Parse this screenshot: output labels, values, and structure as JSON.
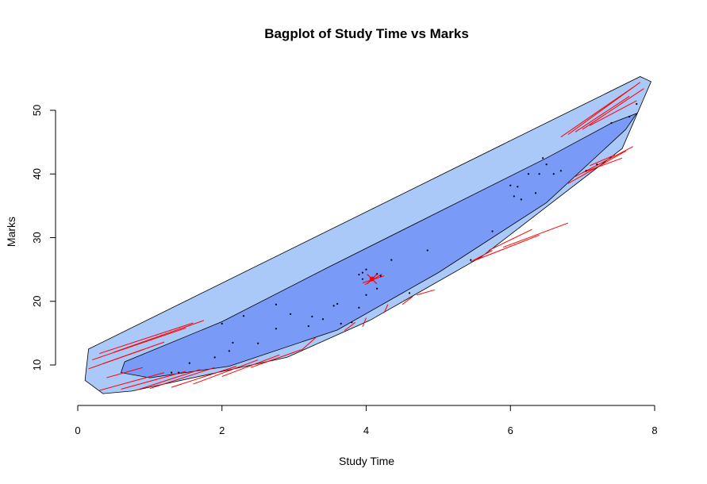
{
  "chart_data": {
    "type": "scatter",
    "subtype": "bagplot",
    "title": "Bagplot of Study Time vs Marks",
    "xlabel": "Study Time",
    "ylabel": "Marks",
    "xlim": [
      0,
      8
    ],
    "ylim": [
      5,
      55
    ],
    "x_ticks": [
      0,
      2,
      4,
      6,
      8
    ],
    "y_ticks": [
      10,
      20,
      30,
      40,
      50
    ],
    "grid": false,
    "colors": {
      "loop": "#aac8f8",
      "bag": "#7a9af8",
      "outline": "#000000",
      "whisker": "#ff0000",
      "center": "#ff0000",
      "points": "#000000"
    },
    "loop_polygon": [
      [
        0.15,
        12.5
      ],
      [
        7.8,
        55.3
      ],
      [
        7.95,
        54.5
      ],
      [
        7.55,
        44.0
      ],
      [
        5.6,
        27.0
      ],
      [
        4.05,
        17.0
      ],
      [
        2.9,
        11.2
      ],
      [
        0.75,
        5.9
      ],
      [
        0.35,
        5.5
      ],
      [
        0.1,
        7.6
      ]
    ],
    "bag_polygon": [
      [
        0.65,
        10.5
      ],
      [
        2.0,
        16.8
      ],
      [
        3.5,
        25.5
      ],
      [
        5.0,
        34.0
      ],
      [
        6.5,
        42.5
      ],
      [
        7.4,
        48.0
      ],
      [
        7.75,
        49.5
      ],
      [
        7.6,
        47.0
      ],
      [
        6.5,
        35.5
      ],
      [
        5.0,
        24.5
      ],
      [
        3.6,
        15.5
      ],
      [
        2.1,
        9.8
      ],
      [
        1.0,
        8.0
      ],
      [
        0.6,
        8.8
      ]
    ],
    "center": [
      4.08,
      23.5
    ],
    "points": [
      [
        1.3,
        8.8
      ],
      [
        1.4,
        8.8
      ],
      [
        1.55,
        10.3
      ],
      [
        1.9,
        11.2
      ],
      [
        2.0,
        16.5
      ],
      [
        2.1,
        12.2
      ],
      [
        2.15,
        13.5
      ],
      [
        2.3,
        17.7
      ],
      [
        2.5,
        13.4
      ],
      [
        2.75,
        19.5
      ],
      [
        2.75,
        15.7
      ],
      [
        2.95,
        18.0
      ],
      [
        3.2,
        16.1
      ],
      [
        3.25,
        17.6
      ],
      [
        3.4,
        17.2
      ],
      [
        3.55,
        19.3
      ],
      [
        3.6,
        19.6
      ],
      [
        3.65,
        16.5
      ],
      [
        3.8,
        16.7
      ],
      [
        3.9,
        19.0
      ],
      [
        3.9,
        24.2
      ],
      [
        3.95,
        23.5
      ],
      [
        3.95,
        24.5
      ],
      [
        4.0,
        21.0
      ],
      [
        4.0,
        25.0
      ],
      [
        4.1,
        23.7
      ],
      [
        4.15,
        24.3
      ],
      [
        4.2,
        24.0
      ],
      [
        4.15,
        22.0
      ],
      [
        4.35,
        26.5
      ],
      [
        4.6,
        21.3
      ],
      [
        4.85,
        28.0
      ],
      [
        5.45,
        26.5
      ],
      [
        5.75,
        31.0
      ],
      [
        6.0,
        38.2
      ],
      [
        6.05,
        36.5
      ],
      [
        6.1,
        38.0
      ],
      [
        6.15,
        36.0
      ],
      [
        6.25,
        40.0
      ],
      [
        6.35,
        37.0
      ],
      [
        6.4,
        40.0
      ],
      [
        6.45,
        42.5
      ],
      [
        6.5,
        41.5
      ],
      [
        6.6,
        40.0
      ],
      [
        6.7,
        40.5
      ],
      [
        7.05,
        40.5
      ],
      [
        7.2,
        41.5
      ],
      [
        7.4,
        48.0
      ],
      [
        7.65,
        49.0
      ],
      [
        7.75,
        51.0
      ]
    ],
    "outliers": [],
    "whisker_segments": [
      [
        [
          0.3,
          11.8
        ],
        [
          1.6,
          16.6
        ]
      ],
      [
        [
          0.5,
          12.0
        ],
        [
          1.75,
          17.0
        ]
      ],
      [
        [
          0.2,
          10.8
        ],
        [
          1.5,
          15.8
        ]
      ],
      [
        [
          0.35,
          10.2
        ],
        [
          1.2,
          13.6
        ]
      ],
      [
        [
          0.15,
          9.4
        ],
        [
          0.9,
          12.4
        ]
      ],
      [
        [
          0.4,
          8.0
        ],
        [
          0.9,
          9.6
        ]
      ],
      [
        [
          0.3,
          6.0
        ],
        [
          1.2,
          8.8
        ]
      ],
      [
        [
          0.6,
          6.2
        ],
        [
          1.5,
          9.0
        ]
      ],
      [
        [
          0.8,
          6.0
        ],
        [
          1.7,
          9.3
        ]
      ],
      [
        [
          1.0,
          6.3
        ],
        [
          1.9,
          9.6
        ]
      ],
      [
        [
          1.3,
          6.5
        ],
        [
          2.2,
          9.8
        ]
      ],
      [
        [
          1.6,
          7.0
        ],
        [
          2.5,
          10.8
        ]
      ],
      [
        [
          2.0,
          8.2
        ],
        [
          2.8,
          11.6
        ]
      ],
      [
        [
          2.4,
          9.6
        ],
        [
          3.1,
          12.4
        ]
      ],
      [
        [
          3.1,
          12.3
        ],
        [
          3.3,
          14.3
        ]
      ],
      [
        [
          3.7,
          15.4
        ],
        [
          3.85,
          16.7
        ]
      ],
      [
        [
          3.95,
          16.0
        ],
        [
          4.0,
          17.4
        ]
      ],
      [
        [
          4.25,
          18.2
        ],
        [
          4.3,
          19.5
        ]
      ],
      [
        [
          4.5,
          19.5
        ],
        [
          4.65,
          20.8
        ]
      ],
      [
        [
          4.7,
          21.0
        ],
        [
          4.95,
          21.8
        ]
      ],
      [
        [
          5.45,
          26.2
        ],
        [
          5.75,
          28.0
        ]
      ],
      [
        [
          5.5,
          26.4
        ],
        [
          6.4,
          30.4
        ]
      ],
      [
        [
          5.7,
          28.0
        ],
        [
          6.3,
          31.3
        ]
      ],
      [
        [
          5.9,
          28.5
        ],
        [
          6.8,
          32.3
        ]
      ],
      [
        [
          6.7,
          45.8
        ],
        [
          7.7,
          53.6
        ]
      ],
      [
        [
          6.8,
          46.2
        ],
        [
          7.8,
          54.4
        ]
      ],
      [
        [
          6.9,
          46.6
        ],
        [
          7.65,
          52.2
        ]
      ],
      [
        [
          7.0,
          47.0
        ],
        [
          7.85,
          53.4
        ]
      ],
      [
        [
          7.1,
          47.6
        ],
        [
          7.75,
          51.5
        ]
      ],
      [
        [
          6.8,
          38.5
        ],
        [
          7.6,
          43.6
        ]
      ],
      [
        [
          6.9,
          39.6
        ],
        [
          7.7,
          44.3
        ]
      ],
      [
        [
          7.0,
          40.2
        ],
        [
          7.55,
          42.5
        ]
      ],
      [
        [
          7.1,
          41.3
        ],
        [
          7.45,
          43.0
        ]
      ],
      [
        [
          3.98,
          22.6
        ],
        [
          4.22,
          24.3
        ]
      ],
      [
        [
          3.95,
          22.9
        ],
        [
          4.25,
          24.0
        ]
      ]
    ]
  }
}
